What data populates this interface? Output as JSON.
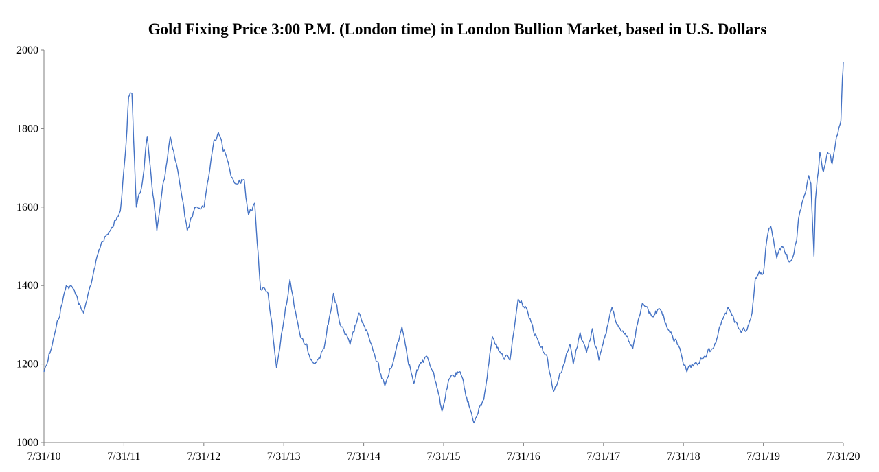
{
  "chart_data": {
    "type": "line",
    "title": "Gold Fixing Price 3:00 P.M. (London time) in London Bullion Market, based in U.S. Dollars",
    "xlabel": "",
    "ylabel": "",
    "ylim": [
      1000,
      2000
    ],
    "yticks": [
      1000,
      1200,
      1400,
      1600,
      1800,
      2000
    ],
    "xlim": [
      "2010-07-31",
      "2020-07-31"
    ],
    "xtick_labels": [
      "7/31/10",
      "7/31/11",
      "7/31/12",
      "7/31/13",
      "7/31/14",
      "7/31/15",
      "7/31/16",
      "7/31/17",
      "7/31/18",
      "7/31/19",
      "7/31/20"
    ],
    "grid": false,
    "legend": "none",
    "series": [
      {
        "color": "#4472c4",
        "points": [
          [
            "2010-07-31",
            1180
          ],
          [
            "2010-09-15",
            1270
          ],
          [
            "2010-11-10",
            1400
          ],
          [
            "2010-12-15",
            1390
          ],
          [
            "2011-01-28",
            1330
          ],
          [
            "2011-03-10",
            1420
          ],
          [
            "2011-04-20",
            1510
          ],
          [
            "2011-05-30",
            1540
          ],
          [
            "2011-07-15",
            1590
          ],
          [
            "2011-08-10",
            1760
          ],
          [
            "2011-08-22",
            1880
          ],
          [
            "2011-09-06",
            1890
          ],
          [
            "2011-09-26",
            1600
          ],
          [
            "2011-10-20",
            1650
          ],
          [
            "2011-11-15",
            1780
          ],
          [
            "2011-12-29",
            1540
          ],
          [
            "2012-02-28",
            1780
          ],
          [
            "2012-04-15",
            1650
          ],
          [
            "2012-05-16",
            1540
          ],
          [
            "2012-06-20",
            1600
          ],
          [
            "2012-08-01",
            1600
          ],
          [
            "2012-09-15",
            1770
          ],
          [
            "2012-10-05",
            1790
          ],
          [
            "2012-11-15",
            1720
          ],
          [
            "2012-12-20",
            1660
          ],
          [
            "2013-01-31",
            1670
          ],
          [
            "2013-02-20",
            1580
          ],
          [
            "2013-03-20",
            1610
          ],
          [
            "2013-04-16",
            1390
          ],
          [
            "2013-05-20",
            1380
          ],
          [
            "2013-06-28",
            1190
          ],
          [
            "2013-07-31",
            1310
          ],
          [
            "2013-08-28",
            1415
          ],
          [
            "2013-10-15",
            1270
          ],
          [
            "2013-12-20",
            1200
          ],
          [
            "2014-01-31",
            1240
          ],
          [
            "2014-03-15",
            1380
          ],
          [
            "2014-04-15",
            1300
          ],
          [
            "2014-05-30",
            1250
          ],
          [
            "2014-07-10",
            1330
          ],
          [
            "2014-09-15",
            1230
          ],
          [
            "2014-11-05",
            1145
          ],
          [
            "2014-12-15",
            1210
          ],
          [
            "2015-01-22",
            1295
          ],
          [
            "2015-03-17",
            1150
          ],
          [
            "2015-04-15",
            1200
          ],
          [
            "2015-05-15",
            1220
          ],
          [
            "2015-06-15",
            1180
          ],
          [
            "2015-07-24",
            1080
          ],
          [
            "2015-08-24",
            1160
          ],
          [
            "2015-10-15",
            1180
          ],
          [
            "2015-12-17",
            1050
          ],
          [
            "2016-01-31",
            1110
          ],
          [
            "2016-03-10",
            1270
          ],
          [
            "2016-04-15",
            1230
          ],
          [
            "2016-05-30",
            1210
          ],
          [
            "2016-07-06",
            1365
          ],
          [
            "2016-08-15",
            1340
          ],
          [
            "2016-10-05",
            1260
          ],
          [
            "2016-11-15",
            1220
          ],
          [
            "2016-12-15",
            1130
          ],
          [
            "2017-01-31",
            1200
          ],
          [
            "2017-02-28",
            1250
          ],
          [
            "2017-03-15",
            1200
          ],
          [
            "2017-04-15",
            1280
          ],
          [
            "2017-05-15",
            1230
          ],
          [
            "2017-06-10",
            1290
          ],
          [
            "2017-07-10",
            1210
          ],
          [
            "2017-09-08",
            1345
          ],
          [
            "2017-10-15",
            1290
          ],
          [
            "2017-12-12",
            1240
          ],
          [
            "2018-01-25",
            1355
          ],
          [
            "2018-03-15",
            1320
          ],
          [
            "2018-04-15",
            1340
          ],
          [
            "2018-05-20",
            1290
          ],
          [
            "2018-07-15",
            1240
          ],
          [
            "2018-08-16",
            1180
          ],
          [
            "2018-09-15",
            1195
          ],
          [
            "2018-10-31",
            1215
          ],
          [
            "2018-12-15",
            1240
          ],
          [
            "2019-01-31",
            1320
          ],
          [
            "2019-02-20",
            1345
          ],
          [
            "2019-04-10",
            1290
          ],
          [
            "2019-05-15",
            1285
          ],
          [
            "2019-06-10",
            1330
          ],
          [
            "2019-06-25",
            1420
          ],
          [
            "2019-07-31",
            1430
          ],
          [
            "2019-08-15",
            1510
          ],
          [
            "2019-09-04",
            1550
          ],
          [
            "2019-10-01",
            1470
          ],
          [
            "2019-10-25",
            1500
          ],
          [
            "2019-11-30",
            1460
          ],
          [
            "2019-12-31",
            1515
          ],
          [
            "2020-01-08",
            1570
          ],
          [
            "2020-02-24",
            1680
          ],
          [
            "2020-03-05",
            1660
          ],
          [
            "2020-03-19",
            1475
          ],
          [
            "2020-03-26",
            1620
          ],
          [
            "2020-04-15",
            1740
          ],
          [
            "2020-05-01",
            1690
          ],
          [
            "2020-05-20",
            1740
          ],
          [
            "2020-06-10",
            1710
          ],
          [
            "2020-06-30",
            1780
          ],
          [
            "2020-07-10",
            1800
          ],
          [
            "2020-07-20",
            1820
          ],
          [
            "2020-07-27",
            1930
          ],
          [
            "2020-07-31",
            1970
          ]
        ]
      }
    ]
  }
}
